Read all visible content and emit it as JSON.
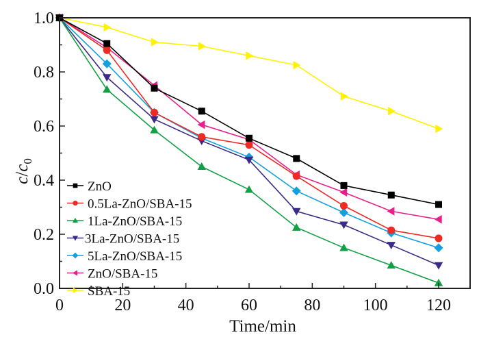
{
  "chart_data": {
    "type": "line",
    "title": "",
    "xlabel": "Time/min",
    "ylabel_parts": {
      "c": "c",
      "slash": "/",
      "c0": "c",
      "sub": "0"
    },
    "ylabel": "c/c0",
    "xlim": [
      0,
      130
    ],
    "ylim": [
      0.0,
      1.0
    ],
    "xticks": [
      0,
      20,
      40,
      60,
      80,
      100,
      120
    ],
    "xtick_labels": [
      "0",
      "20",
      "40",
      "60",
      "80",
      "100",
      "120"
    ],
    "yticks": [
      0.0,
      0.2,
      0.4,
      0.6,
      0.8,
      1.0
    ],
    "ytick_labels": [
      "0.0",
      "0.2",
      "0.4",
      "0.6",
      "0.8",
      "1.0"
    ],
    "grid": false,
    "legend_position": "bottom-left",
    "x": [
      0,
      15,
      30,
      45,
      60,
      75,
      90,
      105,
      120
    ],
    "series": [
      {
        "name": "ZnO",
        "color": "#000000",
        "marker": "square",
        "values": [
          1.0,
          0.905,
          0.74,
          0.655,
          0.555,
          0.48,
          0.38,
          0.345,
          0.31
        ]
      },
      {
        "name": "0.5La-ZnO/SBA-15",
        "color": "#ee2a24",
        "marker": "circle",
        "values": [
          1.0,
          0.88,
          0.65,
          0.56,
          0.53,
          0.415,
          0.305,
          0.215,
          0.185
        ]
      },
      {
        "name": "1La-ZnO/SBA-15",
        "color": "#11a045",
        "marker": "triangle-up",
        "values": [
          1.0,
          0.735,
          0.585,
          0.45,
          0.365,
          0.225,
          0.15,
          0.085,
          0.02
        ]
      },
      {
        "name": "3La-ZnO/SBA-15",
        "color": "#3b2a86",
        "marker": "triangle-down",
        "values": [
          1.0,
          0.78,
          0.625,
          0.545,
          0.475,
          0.285,
          0.235,
          0.16,
          0.085
        ]
      },
      {
        "name": "5La-ZnO/SBA-15",
        "color": "#14a0e0",
        "marker": "diamond",
        "values": [
          1.0,
          0.83,
          0.65,
          0.555,
          0.485,
          0.36,
          0.28,
          0.205,
          0.15
        ]
      },
      {
        "name": "ZnO/SBA-15",
        "color": "#ea1f8a",
        "marker": "triangle-left",
        "values": [
          1.0,
          0.89,
          0.75,
          0.605,
          0.55,
          0.42,
          0.355,
          0.285,
          0.255
        ]
      },
      {
        "name": "SBA-15",
        "color": "#fff200",
        "marker": "triangle-right",
        "values": [
          1.0,
          0.965,
          0.91,
          0.895,
          0.86,
          0.825,
          0.71,
          0.655,
          0.59
        ]
      }
    ]
  }
}
